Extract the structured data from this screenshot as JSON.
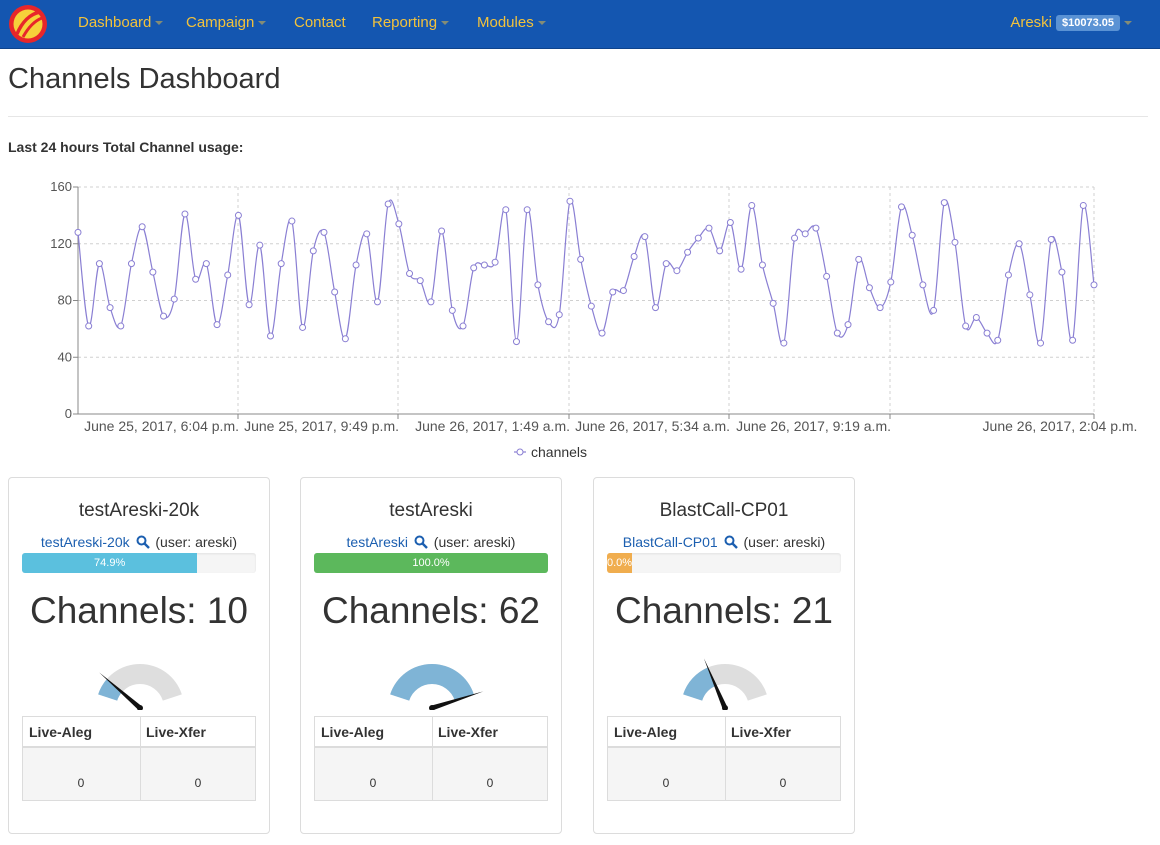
{
  "nav": {
    "items": [
      {
        "label": "Dashboard",
        "dropdown": true
      },
      {
        "label": "Campaign",
        "dropdown": true
      },
      {
        "label": "Contact",
        "dropdown": false
      },
      {
        "label": "Reporting",
        "dropdown": true
      },
      {
        "label": "Modules",
        "dropdown": true
      }
    ],
    "user": "Areski",
    "balance": "$10073.05",
    "colors": {
      "bar": "#1456b0",
      "text": "#f2c23c"
    }
  },
  "page": {
    "title": "Channels Dashboard",
    "usage_label": "Last 24 hours Total Channel usage:"
  },
  "chart_data": {
    "type": "line",
    "title": "",
    "xlabel": "",
    "ylabel": "",
    "ylim": [
      0,
      160
    ],
    "yticks": [
      0,
      40,
      80,
      120,
      160
    ],
    "xtick_labels": [
      "June 25, 2017, 6:04 p.m.",
      "June 25, 2017, 9:49 p.m.",
      "June 26, 2017, 1:49 a.m.",
      "June 26, 2017, 5:34 a.m.",
      "June 26, 2017, 9:19 a.m.",
      "June 26, 2017, 2:04 p.m."
    ],
    "grid": true,
    "legend": "bottom-center",
    "series": [
      {
        "name": "channels",
        "color": "#8a7fd3",
        "values": [
          128,
          62,
          106,
          75,
          62,
          106,
          132,
          100,
          69,
          81,
          141,
          95,
          106,
          63,
          98,
          140,
          77,
          119,
          55,
          106,
          136,
          61,
          115,
          128,
          86,
          53,
          105,
          127,
          79,
          148,
          134,
          99,
          94,
          79,
          129,
          73,
          62,
          103,
          105,
          107,
          144,
          51,
          144,
          91,
          65,
          70,
          150,
          109,
          76,
          57,
          86,
          87,
          111,
          125,
          75,
          106,
          101,
          114,
          124,
          131,
          115,
          135,
          102,
          147,
          105,
          78,
          50,
          124,
          127,
          131,
          97,
          57,
          63,
          109,
          89,
          75,
          93,
          146,
          126,
          91,
          73,
          149,
          121,
          62,
          68,
          57,
          52,
          98,
          120,
          84,
          50,
          123,
          100,
          52,
          147,
          91
        ]
      }
    ]
  },
  "cards": [
    {
      "title": "testAreski-20k",
      "link": "testAreski-20k",
      "user": "(user: areski)",
      "progress": 74.9,
      "progress_label": "74.9%",
      "progress_color": "#5bc0de",
      "channels_text": "Channels: 10",
      "gauge_fraction": 0.16,
      "headers": [
        "Live-Aleg",
        "Live-Xfer"
      ],
      "values": [
        "0",
        "0"
      ]
    },
    {
      "title": "testAreski",
      "link": "testAreski",
      "user": "(user: areski)",
      "progress": 100.0,
      "progress_label": "100.0%",
      "progress_color": "#5cb85c",
      "channels_text": "Channels: 62",
      "gauge_fraction": 1.0,
      "headers": [
        "Live-Aleg",
        "Live-Xfer"
      ],
      "values": [
        "0",
        "0"
      ]
    },
    {
      "title": "BlastCall-CP01",
      "link": "BlastCall-CP01",
      "user": "(user: areski)",
      "progress": 0.0,
      "progress_label": "0.0%",
      "progress_color": "#f0ad4e",
      "channels_text": "Channels: 21",
      "gauge_fraction": 0.34,
      "headers": [
        "Live-Aleg",
        "Live-Xfer"
      ],
      "values": [
        "0",
        "0"
      ]
    }
  ],
  "icons": {
    "logo": "logo-icon",
    "search": "search-icon",
    "caret": "caret-down-icon"
  },
  "gauge_colors": {
    "fill": "#7fb4d6",
    "track": "#dedede",
    "needle": "#111111"
  }
}
